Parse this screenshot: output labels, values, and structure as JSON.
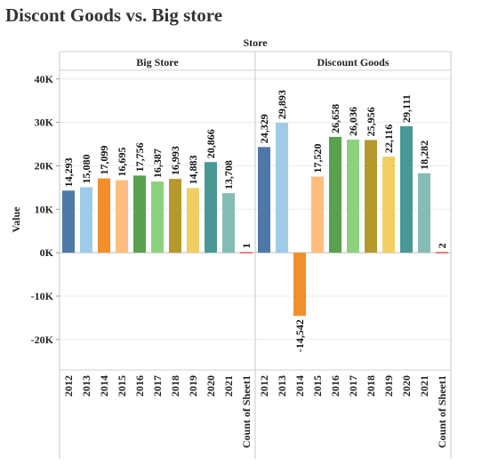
{
  "title": "Discont Goods vs. Big store",
  "chart_data": {
    "type": "bar",
    "header": "Store",
    "ylabel": "Value",
    "ylim": [
      -27000,
      42000
    ],
    "yticks": [
      -20000,
      -10000,
      0,
      10000,
      20000,
      30000,
      40000
    ],
    "ytick_labels": [
      "-20K",
      "-10K",
      "0K",
      "10K",
      "20K",
      "30K",
      "40K"
    ],
    "categories": [
      "2012",
      "2013",
      "2014",
      "2015",
      "2016",
      "2017",
      "2018",
      "2019",
      "2020",
      "2021",
      "Count of Sheet1"
    ],
    "colors": [
      "#4e79a7",
      "#a0cbe8",
      "#f28e2b",
      "#ffbe7d",
      "#59a14f",
      "#8cd17d",
      "#b6992d",
      "#f1ce63",
      "#499894",
      "#86bcb6",
      "#e15759"
    ],
    "grid": true,
    "panels": [
      {
        "name": "Big Store",
        "values": [
          14293,
          15080,
          17099,
          16695,
          17756,
          16387,
          16993,
          14883,
          20866,
          13708,
          1
        ],
        "labels": [
          "14,293",
          "15,080",
          "17,099",
          "16,695",
          "17,756",
          "16,387",
          "16,993",
          "14,883",
          "20,866",
          "13,708",
          "1"
        ]
      },
      {
        "name": "Discount Goods",
        "values": [
          24329,
          29893,
          -14542,
          17520,
          26658,
          26036,
          25956,
          22116,
          29111,
          18282,
          2
        ],
        "labels": [
          "24,329",
          "29,893",
          "-14,542",
          "17,520",
          "26,658",
          "26,036",
          "25,956",
          "22,116",
          "29,111",
          "18,282",
          "2"
        ]
      }
    ]
  }
}
